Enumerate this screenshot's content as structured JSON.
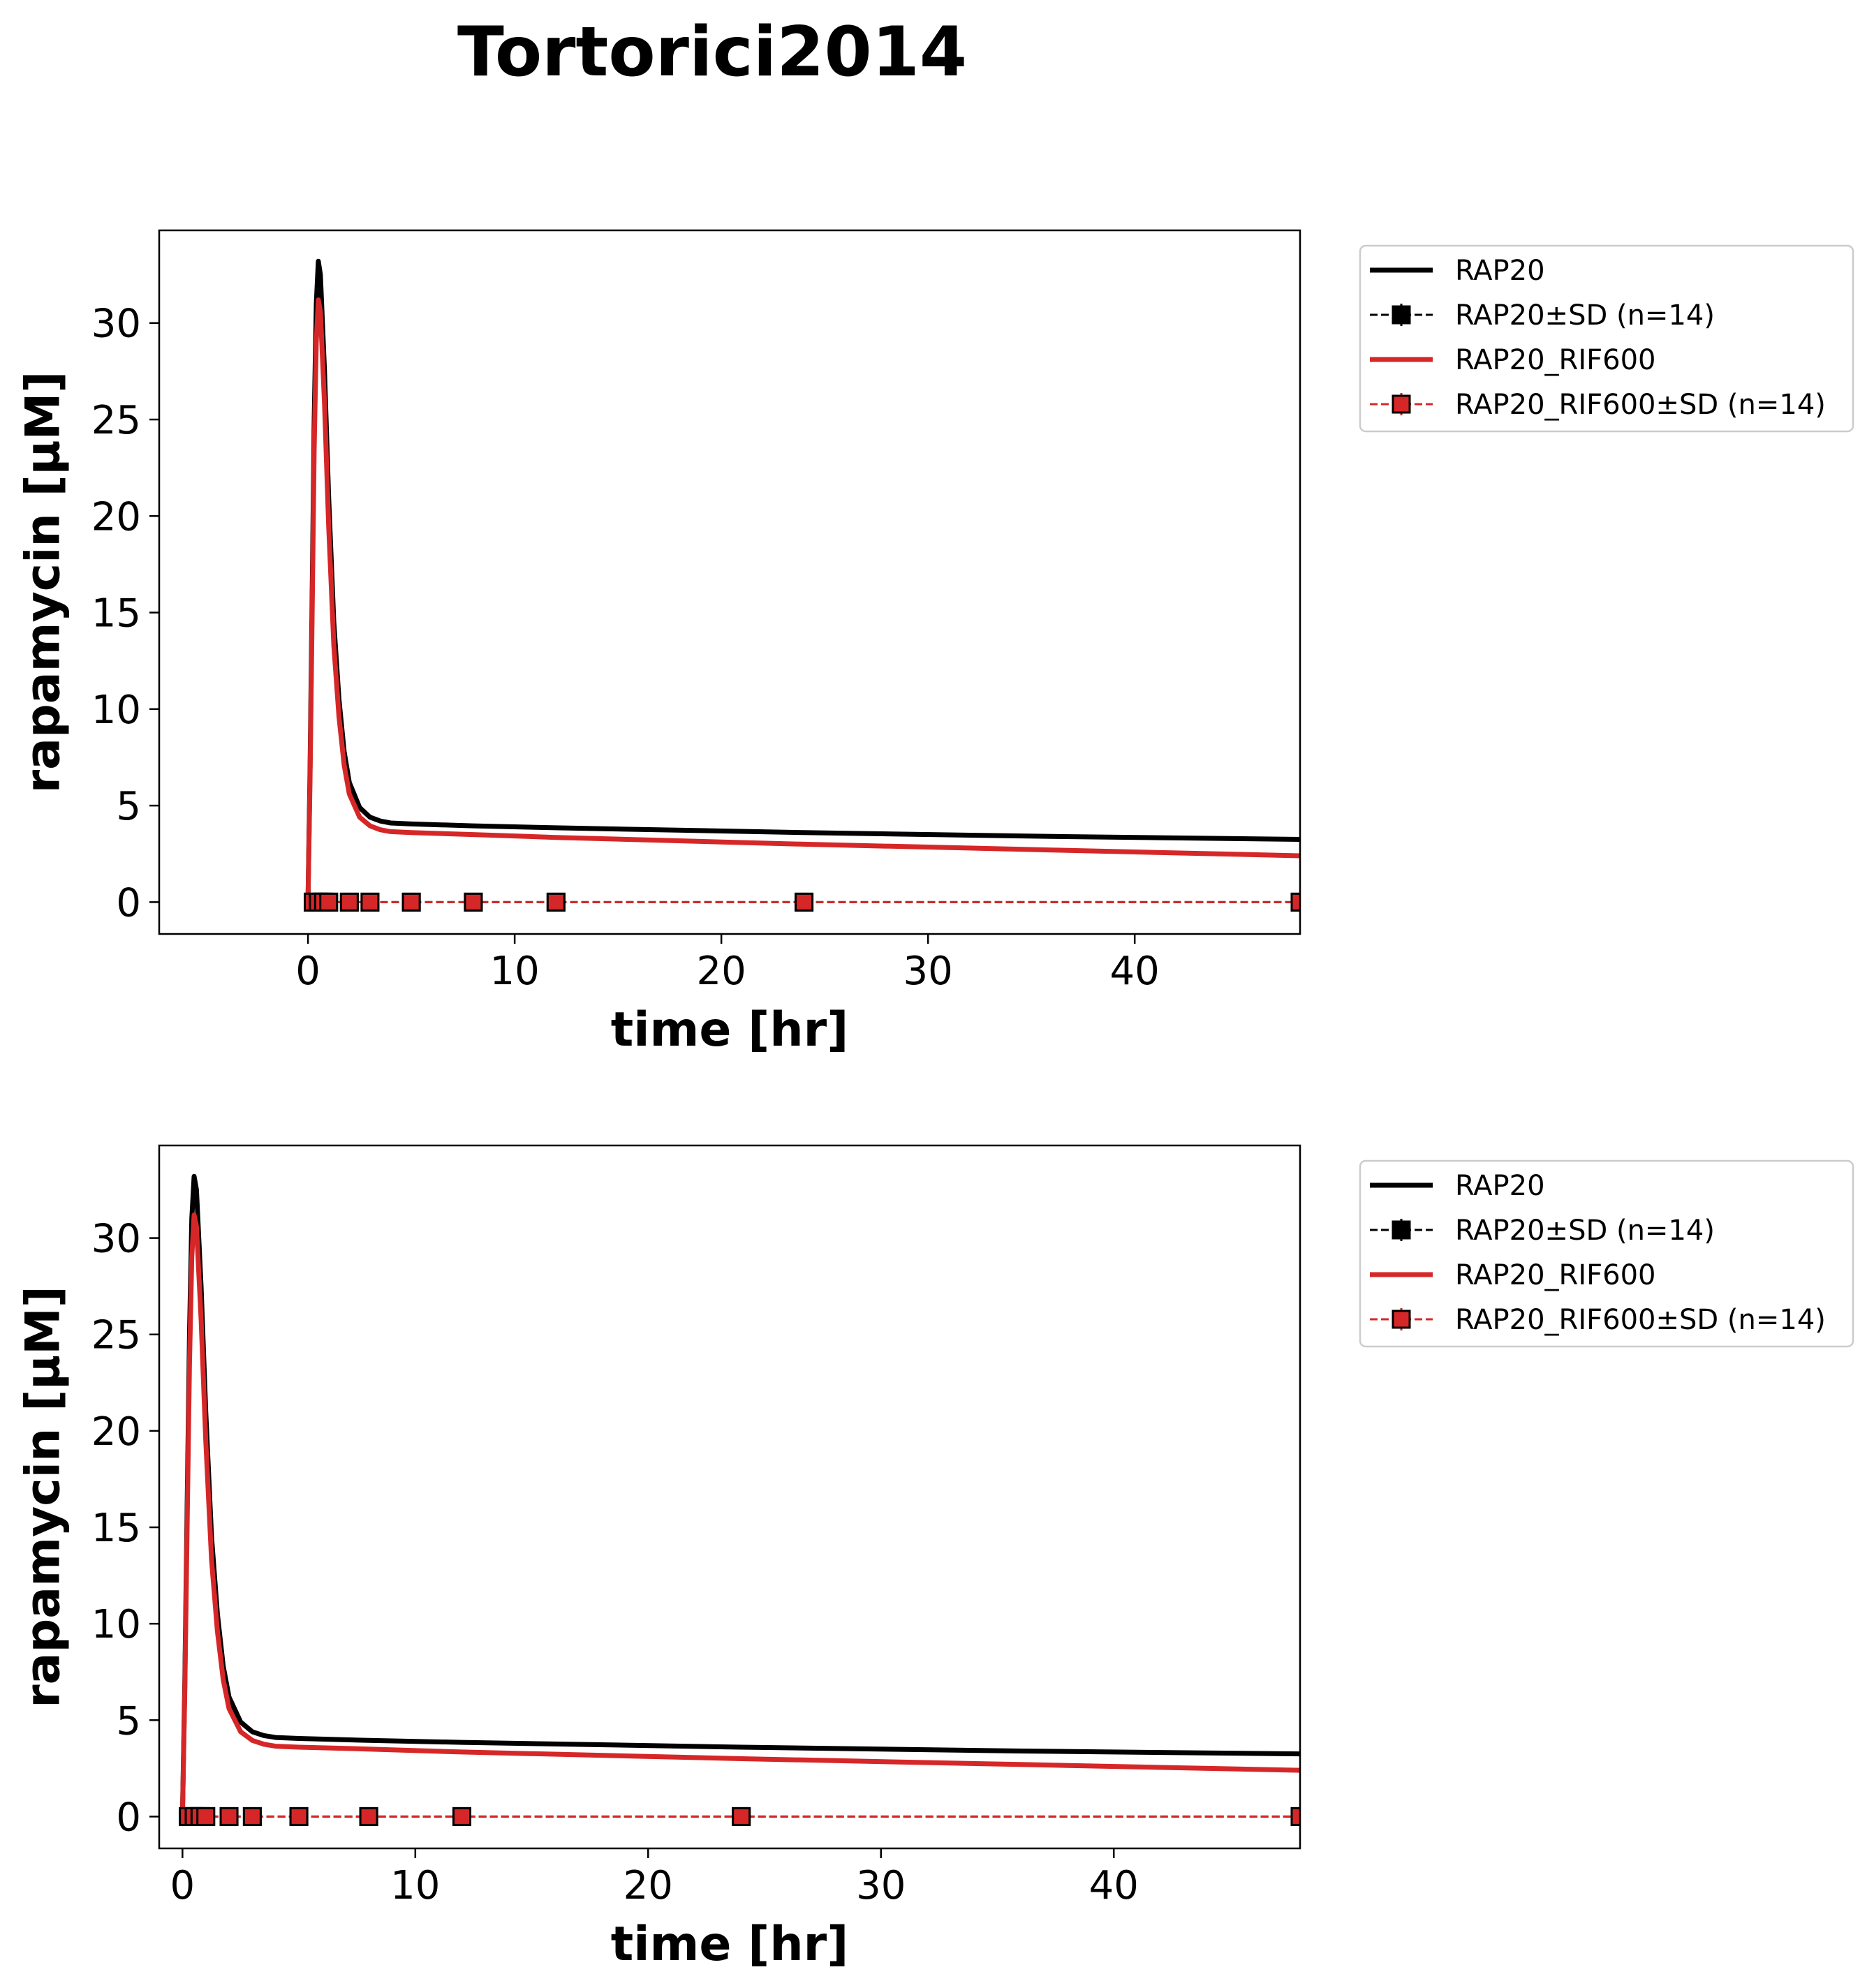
{
  "suptitle": "Tortorici2014",
  "colors": {
    "RAP20": "#000000",
    "RAP20_RIF600": "#d62728"
  },
  "legend_labels": [
    "RAP20",
    "RAP20±SD (n=14)",
    "RAP20_RIF600",
    "RAP20_RIF600±SD (n=14)"
  ],
  "chart_data": [
    {
      "type": "line",
      "xlabel": "time [hr]",
      "ylabel": "rapamycin [µM]",
      "xlim": [
        -7.2,
        48
      ],
      "ylim": [
        -1.65,
        34.8
      ],
      "xticks": [
        0,
        10,
        20,
        30,
        40
      ],
      "yticks": [
        0,
        5,
        10,
        15,
        20,
        25,
        30
      ],
      "grid": false,
      "legend_position": "outside-upper-right",
      "series": [
        {
          "name": "RAP20",
          "style": "line",
          "color": "#000000",
          "x": [
            0,
            0.1,
            0.2,
            0.3,
            0.4,
            0.5,
            0.6,
            0.8,
            1.0,
            1.25,
            1.5,
            1.75,
            2.0,
            2.5,
            3.0,
            3.5,
            4,
            5,
            8,
            12,
            24,
            36,
            48
          ],
          "y": [
            0,
            7,
            16,
            25,
            31,
            33.2,
            32.5,
            27.5,
            21,
            14.5,
            10.5,
            7.8,
            6.2,
            4.9,
            4.4,
            4.2,
            4.1,
            4.05,
            3.95,
            3.85,
            3.6,
            3.4,
            3.25
          ]
        },
        {
          "name": "RAP20±SD (n=14)",
          "style": "errorbar",
          "color": "#000000",
          "x": [
            0.25,
            0.5,
            0.75,
            1,
            2,
            3,
            5,
            8,
            12,
            24,
            48
          ],
          "y": [
            0,
            0,
            0,
            0,
            0,
            0,
            0,
            0,
            0,
            0,
            0
          ]
        },
        {
          "name": "RAP20_RIF600",
          "style": "line",
          "color": "#d62728",
          "x": [
            0,
            0.1,
            0.2,
            0.3,
            0.4,
            0.5,
            0.6,
            0.8,
            1.0,
            1.25,
            1.5,
            1.75,
            2.0,
            2.5,
            3.0,
            3.5,
            4,
            5,
            8,
            12,
            24,
            36,
            48
          ],
          "y": [
            0,
            6.5,
            15,
            23.5,
            29,
            31.2,
            30.6,
            25.8,
            19.5,
            13.3,
            9.6,
            7.1,
            5.6,
            4.4,
            3.95,
            3.75,
            3.65,
            3.6,
            3.5,
            3.35,
            3.0,
            2.7,
            2.4
          ]
        },
        {
          "name": "RAP20_RIF600±SD (n=14)",
          "style": "errorbar",
          "color": "#d62728",
          "x": [
            0.25,
            0.5,
            0.75,
            1,
            2,
            3,
            5,
            8,
            12,
            24,
            48
          ],
          "y": [
            0,
            0,
            0,
            0,
            0,
            0,
            0,
            0,
            0,
            0,
            0
          ]
        }
      ]
    },
    {
      "type": "line",
      "xlabel": "time [hr]",
      "ylabel": "rapamycin [µM]",
      "xlim": [
        -1.0,
        48
      ],
      "ylim": [
        -1.65,
        34.8
      ],
      "xticks": [
        0,
        10,
        20,
        30,
        40
      ],
      "yticks": [
        0,
        5,
        10,
        15,
        20,
        25,
        30
      ],
      "grid": false,
      "legend_position": "outside-upper-right",
      "series": [
        {
          "name": "RAP20",
          "style": "line",
          "color": "#000000",
          "x": [
            0,
            0.1,
            0.2,
            0.3,
            0.4,
            0.5,
            0.6,
            0.8,
            1.0,
            1.25,
            1.5,
            1.75,
            2.0,
            2.5,
            3.0,
            3.5,
            4,
            5,
            8,
            12,
            24,
            36,
            48
          ],
          "y": [
            0,
            7,
            16,
            25,
            31,
            33.2,
            32.5,
            27.5,
            21,
            14.5,
            10.5,
            7.8,
            6.2,
            4.9,
            4.4,
            4.2,
            4.1,
            4.05,
            3.95,
            3.85,
            3.6,
            3.4,
            3.25
          ]
        },
        {
          "name": "RAP20±SD (n=14)",
          "style": "errorbar",
          "color": "#000000",
          "x": [
            0.25,
            0.5,
            0.75,
            1,
            2,
            3,
            5,
            8,
            12,
            24,
            48
          ],
          "y": [
            0,
            0,
            0,
            0,
            0,
            0,
            0,
            0,
            0,
            0,
            0
          ]
        },
        {
          "name": "RAP20_RIF600",
          "style": "line",
          "color": "#d62728",
          "x": [
            0,
            0.1,
            0.2,
            0.3,
            0.4,
            0.5,
            0.6,
            0.8,
            1.0,
            1.25,
            1.5,
            1.75,
            2.0,
            2.5,
            3.0,
            3.5,
            4,
            5,
            8,
            12,
            24,
            36,
            48
          ],
          "y": [
            0,
            6.5,
            15,
            23.5,
            29,
            31.2,
            30.6,
            25.8,
            19.5,
            13.3,
            9.6,
            7.1,
            5.6,
            4.4,
            3.95,
            3.75,
            3.65,
            3.6,
            3.5,
            3.35,
            3.0,
            2.7,
            2.4
          ]
        },
        {
          "name": "RAP20_RIF600±SD (n=14)",
          "style": "errorbar",
          "color": "#d62728",
          "x": [
            0.25,
            0.5,
            0.75,
            1,
            2,
            3,
            5,
            8,
            12,
            24,
            48
          ],
          "y": [
            0,
            0,
            0,
            0,
            0,
            0,
            0,
            0,
            0,
            0,
            0
          ]
        }
      ]
    }
  ]
}
